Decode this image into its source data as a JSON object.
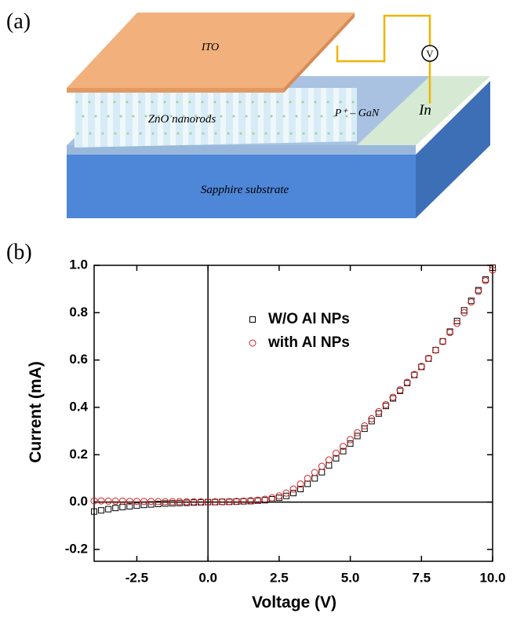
{
  "panel_labels": [
    "(a)",
    "(b)"
  ],
  "diagram": {
    "labels": {
      "ito": "ITO",
      "nanorods": "ZnO nanorods",
      "gan": "P⁺ – GaN",
      "indium": "In",
      "substrate": "Sapphire substrate",
      "meter": "V"
    }
  },
  "chart_data": {
    "type": "scatter",
    "x_label": "Voltage (V)",
    "y_label": "Current (mA)",
    "xlim": [
      -4,
      10
    ],
    "ylim": [
      -0.25,
      1.0
    ],
    "xticks": [
      {
        "value": -2.5,
        "label": "-2.5"
      },
      {
        "value": 0,
        "label": "0.0"
      },
      {
        "value": 2.5,
        "label": "2.5"
      },
      {
        "value": 5,
        "label": "5.0"
      },
      {
        "value": 7.5,
        "label": "7.5"
      },
      {
        "value": 10,
        "label": "10.0"
      }
    ],
    "yticks": [
      {
        "value": -0.2,
        "label": "-0.2"
      },
      {
        "value": 0,
        "label": "0.0"
      },
      {
        "value": 0.2,
        "label": "0.2"
      },
      {
        "value": 0.4,
        "label": "0.4"
      },
      {
        "value": 0.6,
        "label": "0.6"
      },
      {
        "value": 0.8,
        "label": "0.8"
      },
      {
        "value": 1.0,
        "label": "1.0"
      }
    ],
    "x": [
      -4,
      -3.75,
      -3.5,
      -3.25,
      -3,
      -2.75,
      -2.5,
      -2.25,
      -2,
      -1.75,
      -1.5,
      -1.25,
      -1,
      -0.75,
      -0.5,
      -0.25,
      0,
      0.25,
      0.5,
      0.75,
      1,
      1.25,
      1.5,
      1.75,
      2,
      2.25,
      2.5,
      2.75,
      3,
      3.25,
      3.5,
      3.75,
      4,
      4.25,
      4.5,
      4.75,
      5,
      5.25,
      5.5,
      5.75,
      6,
      6.25,
      6.5,
      6.75,
      7,
      7.25,
      7.5,
      7.75,
      8,
      8.25,
      8.5,
      8.75,
      9,
      9.25,
      9.5,
      9.75,
      10
    ],
    "series": [
      {
        "name": "W/O Al NPs",
        "color": "#000000",
        "marker": "square",
        "values": [
          -0.04,
          -0.035,
          -0.03,
          -0.025,
          -0.021,
          -0.018,
          -0.015,
          -0.012,
          -0.01,
          -0.008,
          -0.006,
          -0.005,
          -0.004,
          -0.003,
          -0.002,
          -0.001,
          0,
          0,
          0.001,
          0.001,
          0.002,
          0.003,
          0.004,
          0.006,
          0.008,
          0.012,
          0.018,
          0.026,
          0.038,
          0.055,
          0.077,
          0.1,
          0.126,
          0.155,
          0.185,
          0.215,
          0.247,
          0.279,
          0.31,
          0.342,
          0.374,
          0.406,
          0.438,
          0.47,
          0.503,
          0.537,
          0.571,
          0.606,
          0.642,
          0.679,
          0.72,
          0.765,
          0.81,
          0.85,
          0.895,
          0.94,
          0.99
        ]
      },
      {
        "name": "with Al NPs",
        "color": "#d62020",
        "marker": "circle",
        "values": [
          0.005,
          0.005,
          0.004,
          0.004,
          0.004,
          0.003,
          0.003,
          0.003,
          0.003,
          0.002,
          0.002,
          0.002,
          0.002,
          0.001,
          0.001,
          0.001,
          0,
          0.001,
          0.001,
          0.002,
          0.003,
          0.004,
          0.006,
          0.008,
          0.012,
          0.018,
          0.026,
          0.038,
          0.055,
          0.076,
          0.1,
          0.125,
          0.151,
          0.178,
          0.206,
          0.235,
          0.264,
          0.293,
          0.322,
          0.352,
          0.382,
          0.412,
          0.443,
          0.474,
          0.506,
          0.539,
          0.573,
          0.607,
          0.642,
          0.678,
          0.716,
          0.755,
          0.8,
          0.845,
          0.89,
          0.935,
          0.98
        ]
      }
    ],
    "zero_lines": true
  }
}
